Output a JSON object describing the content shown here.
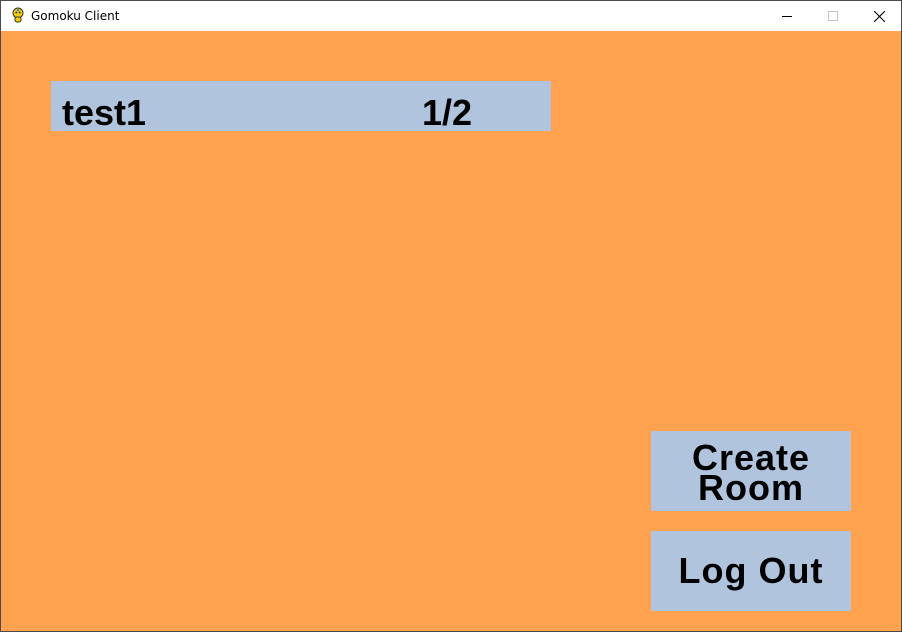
{
  "window": {
    "title": "Gomoku Client",
    "controls": {
      "minimize": "—",
      "maximize": "☐",
      "close": "✕"
    }
  },
  "colors": {
    "background": "#ffa24f",
    "panel": "#b0c4de",
    "text": "#000000"
  },
  "rooms": [
    {
      "name": "test1",
      "occupancy": "1/2"
    }
  ],
  "buttons": {
    "create_room": {
      "line1": "Create",
      "line2": "Room"
    },
    "log_out": "Log Out"
  }
}
